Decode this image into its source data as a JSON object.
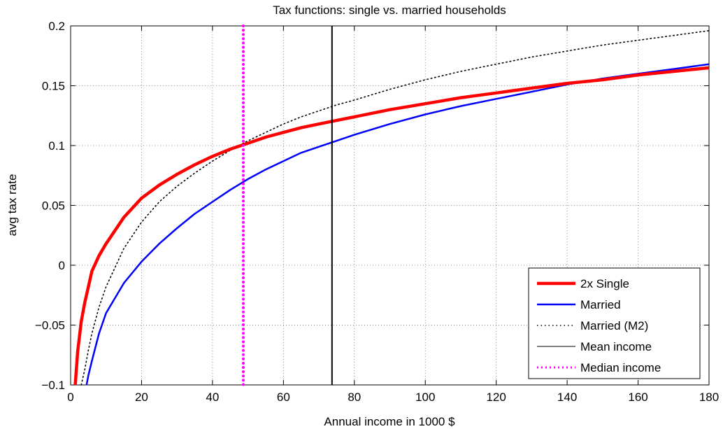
{
  "chart_data": {
    "type": "line",
    "title": "Tax functions: single vs. married households",
    "xlabel": "Annual income in 1000 $",
    "ylabel": "avg tax rate",
    "xlim": [
      0,
      180
    ],
    "ylim": [
      -0.1,
      0.2
    ],
    "xticks": [
      0,
      20,
      40,
      60,
      80,
      100,
      120,
      140,
      160,
      180
    ],
    "xtick_labels": [
      "0",
      "20",
      "40",
      "60",
      "80",
      "100",
      "120",
      "140",
      "160",
      "180"
    ],
    "yticks": [
      -0.1,
      -0.05,
      0,
      0.05,
      0.1,
      0.15,
      0.2
    ],
    "ytick_labels": [
      "−0.1",
      "−0.05",
      "0",
      "0.05",
      "0.1",
      "0.15",
      "0.2"
    ],
    "grid": true,
    "legend_position": "bottom-right",
    "series": [
      {
        "name": "2x Single",
        "color": "#ff0000",
        "style": "solid-thick",
        "x": [
          1.3,
          2,
          3,
          4,
          5,
          6,
          8,
          10,
          15,
          20,
          25,
          30,
          35,
          40,
          45,
          50,
          55,
          60,
          65,
          70,
          75,
          80,
          90,
          100,
          110,
          120,
          130,
          140,
          150,
          160,
          170,
          180
        ],
        "y": [
          -0.1,
          -0.072,
          -0.047,
          -0.031,
          -0.018,
          -0.005,
          0.008,
          0.018,
          0.04,
          0.056,
          0.067,
          0.076,
          0.084,
          0.091,
          0.097,
          0.102,
          0.107,
          0.111,
          0.115,
          0.118,
          0.121,
          0.124,
          0.13,
          0.135,
          0.14,
          0.144,
          0.148,
          0.152,
          0.155,
          0.159,
          0.162,
          0.165
        ]
      },
      {
        "name": "Married",
        "color": "#0000ff",
        "style": "solid",
        "x": [
          4.5,
          5,
          6,
          8,
          10,
          15,
          20,
          25,
          30,
          35,
          40,
          45,
          50,
          55,
          60,
          65,
          70,
          75,
          80,
          90,
          100,
          110,
          120,
          130,
          140,
          150,
          160,
          170,
          180
        ],
        "y": [
          -0.1,
          -0.092,
          -0.08,
          -0.057,
          -0.04,
          -0.015,
          0.003,
          0.018,
          0.031,
          0.043,
          0.053,
          0.063,
          0.072,
          0.08,
          0.087,
          0.094,
          0.099,
          0.104,
          0.109,
          0.118,
          0.126,
          0.133,
          0.139,
          0.145,
          0.151,
          0.156,
          0.16,
          0.164,
          0.168
        ]
      },
      {
        "name": "Married (M2)",
        "color": "#000000",
        "style": "dotted",
        "x": [
          3,
          4,
          5,
          6,
          8,
          10,
          15,
          20,
          25,
          30,
          35,
          40,
          45,
          50,
          55,
          60,
          65,
          70,
          75,
          80,
          90,
          100,
          110,
          120,
          130,
          140,
          150,
          160,
          170,
          180
        ],
        "y": [
          -0.1,
          -0.087,
          -0.071,
          -0.057,
          -0.035,
          -0.018,
          0.014,
          0.036,
          0.053,
          0.066,
          0.077,
          0.087,
          0.096,
          0.104,
          0.111,
          0.118,
          0.124,
          0.129,
          0.134,
          0.138,
          0.147,
          0.155,
          0.162,
          0.168,
          0.174,
          0.179,
          0.184,
          0.188,
          0.192,
          0.196
        ]
      }
    ],
    "vlines": [
      {
        "name": "Mean income",
        "x": 73.7,
        "color": "#000000",
        "style": "solid"
      },
      {
        "name": "Median income",
        "x": 48.7,
        "color": "#ff00ff",
        "style": "dotted"
      }
    ]
  }
}
